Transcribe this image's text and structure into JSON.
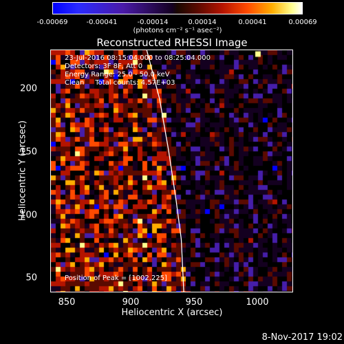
{
  "colorbar": {
    "ticks": [
      "-0.00069",
      "-0.00041",
      "-0.00014",
      "0.00014",
      "0.00041",
      "0.00069"
    ],
    "unit_label": "(photons cm⁻² s⁻¹ asec⁻²)",
    "colors": [
      "#0000ff",
      "#140020",
      "#b41400",
      "#ff4a00",
      "#ffae00",
      "#ffffff"
    ]
  },
  "title": "Reconstructed RHESSI Image",
  "info_lines": [
    "23-Jul-2016 08:15:04.000 to 08:25:04.000",
    "Detectors: 3F 8F, Att 0",
    "Energy Range: 25.0 - 50.0 keV",
    "Clean     Total counts: 4.57E+03"
  ],
  "peak_text": "Position of Peak = [1002,225]",
  "x_ticks": [
    "850",
    "900",
    "950",
    "1000"
  ],
  "y_ticks": [
    "200",
    "150",
    "100",
    "50"
  ],
  "x_label": "Heliocentric X (arcsec)",
  "y_label": "Heliocentric Y (arcsec)",
  "timestamp": "8-Nov-2017 19:02",
  "chart_data": {
    "type": "heatmap",
    "title": "Reconstructed RHESSI Image",
    "xlabel": "Heliocentric X (arcsec)",
    "ylabel": "Heliocentric Y (arcsec)",
    "xlim": [
      840,
      1030
    ],
    "ylim": [
      38,
      228
    ],
    "color_range": [
      -0.00069,
      0.00069
    ],
    "peak": [
      1002,
      225
    ],
    "limb_curve": [
      [
        915,
        228
      ],
      [
        925,
        190
      ],
      [
        932,
        150
      ],
      [
        938,
        110
      ],
      [
        942,
        80
      ],
      [
        944,
        38
      ]
    ]
  }
}
